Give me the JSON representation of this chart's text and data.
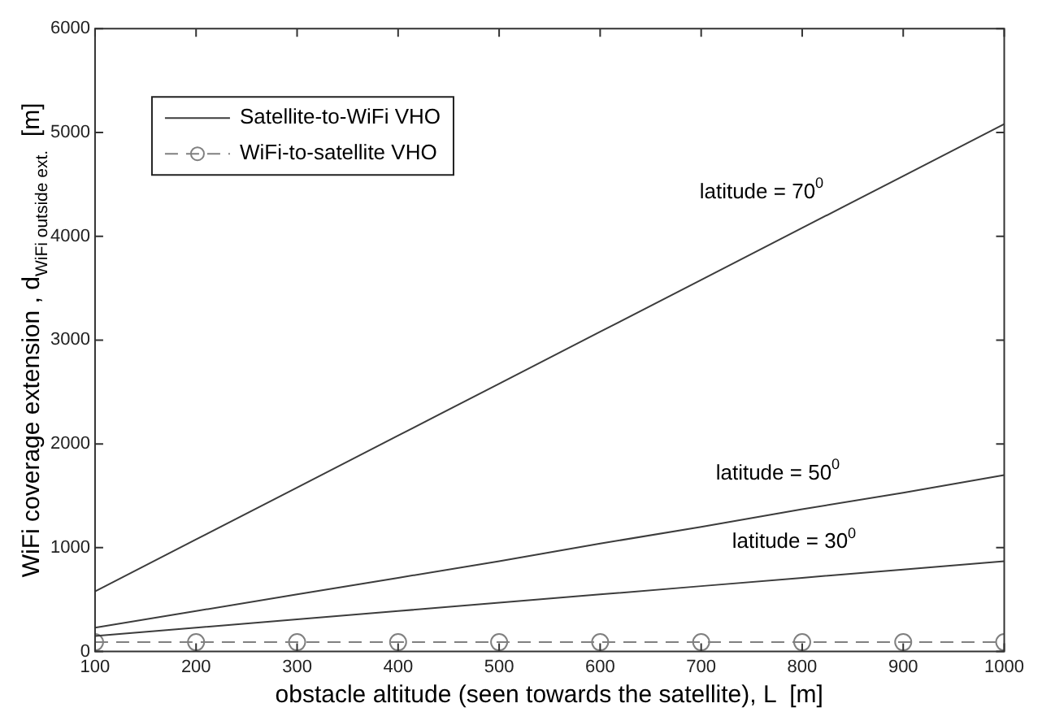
{
  "chart_data": {
    "type": "line",
    "xlabel": "obstacle altitude (seen towards the satellite), L  [m]",
    "ylabel": "WiFi coverage extension , d$_{WiFi outside ext.}$  [m]",
    "x": [
      100,
      200,
      300,
      400,
      500,
      600,
      700,
      800,
      900,
      1000
    ],
    "series": [
      {
        "name": "Satellite-to-WiFi VHO",
        "color": "#3c3c3c",
        "values": [
          580,
          1080,
          1580,
          2080,
          2580,
          3080,
          3580,
          4080,
          4580,
          5080
        ],
        "marker": "none",
        "line_style": "solid"
      },
      {
        "color": "#3c3c3c",
        "values": [
          230,
          390,
          550,
          710,
          870,
          1040,
          1200,
          1370,
          1530,
          1700
        ],
        "marker": "none",
        "line_style": "solid"
      },
      {
        "color": "#3c3c3c",
        "values": [
          150,
          230,
          310,
          390,
          470,
          550,
          630,
          710,
          790,
          870
        ],
        "marker": "none",
        "line_style": "solid"
      },
      {
        "name": "WiFi-to-satellite VHO",
        "color": "#808080",
        "values": [
          90,
          90,
          90,
          90,
          90,
          90,
          90,
          90,
          90,
          90
        ],
        "marker": "circle",
        "line_style": "dashed"
      }
    ],
    "xlim": [
      100,
      1000
    ],
    "xticks": [
      100,
      200,
      300,
      400,
      500,
      600,
      700,
      800,
      900,
      1000
    ],
    "ylim": [
      0,
      6000
    ],
    "yticks": [
      0,
      1000,
      2000,
      3000,
      4000,
      5000,
      6000
    ],
    "grid": false,
    "legend": "top left",
    "annotations": [
      "latitude = 70$^{0}$",
      "latitude = 50$^{0}$",
      "latitude = 30$^{0}$"
    ]
  }
}
